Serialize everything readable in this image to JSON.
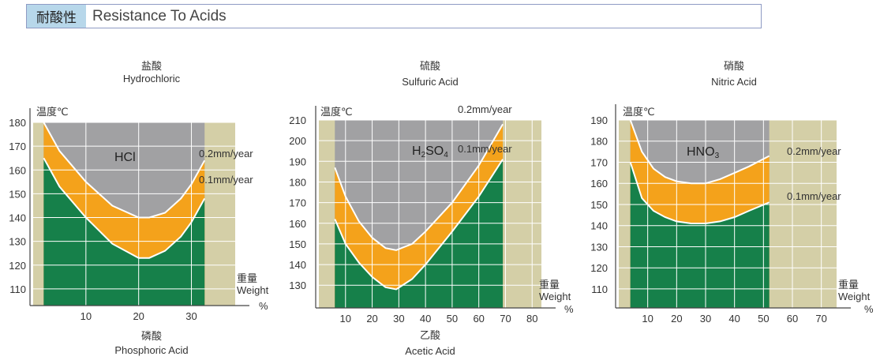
{
  "header": {
    "title_zh": "耐酸性",
    "title_en": "Resistance To Acids"
  },
  "colors": {
    "safe": "#16804a",
    "caution": "#f4a21b",
    "unsafe": "#a1a1a3",
    "out_of_range": "#d4cfa7",
    "grid": "#ffffff"
  },
  "chart_data": [
    {
      "type": "area",
      "top_label_zh": "盐酸",
      "top_label_en": "Hydrochloric",
      "bottom_label_zh": "磷酸",
      "bottom_label_en": "Phosphoric Acid",
      "region_label": "HCl",
      "region_label_sub": "",
      "ylabel": "温度℃",
      "xlabel_zh": "重量",
      "xlabel_en": "Weight",
      "xunit": "%",
      "xlim": [
        0,
        38
      ],
      "ylim": [
        103,
        180
      ],
      "yticks": [
        110,
        120,
        130,
        140,
        150,
        160,
        170,
        180
      ],
      "xticks": [
        10,
        20,
        30
      ],
      "xticks_labels": [
        "10",
        "20",
        "30"
      ],
      "data_range": [
        2,
        32.5
      ],
      "plot_bottom": 103,
      "series": [
        {
          "name": "0.2mm/year",
          "x": [
            2,
            5,
            10,
            15,
            20,
            22,
            25,
            28,
            30,
            32.5
          ],
          "y": [
            180,
            168,
            155,
            145,
            140,
            140,
            142,
            148,
            154,
            164
          ]
        },
        {
          "name": "0.1mm/year",
          "x": [
            2,
            5,
            10,
            15,
            20,
            22,
            25,
            28,
            30,
            32.5
          ],
          "y": [
            165,
            153,
            140,
            129,
            123,
            123,
            126,
            132,
            138,
            148
          ]
        }
      ]
    },
    {
      "type": "area",
      "top_label_zh": "硫酸",
      "top_label_en": "Sulfuric Acid",
      "bottom_label_zh": "乙酸",
      "bottom_label_en": "Acetic Acid",
      "region_label": "H",
      "region_label_sub": "2SO4",
      "ylabel": "温度℃",
      "xlabel_zh": "重量",
      "xlabel_en": "Weight",
      "xunit": "%",
      "xlim": [
        0,
        82
      ],
      "ylim": [
        119,
        210
      ],
      "yticks": [
        130,
        140,
        150,
        160,
        170,
        180,
        190,
        200,
        210
      ],
      "xticks": [
        10,
        20,
        30,
        40,
        50,
        60,
        70,
        80
      ],
      "xticks_labels": [
        "10",
        "20",
        "30",
        "40",
        "50",
        "60",
        "70",
        "80"
      ],
      "data_range": [
        6,
        69
      ],
      "plot_bottom": 119,
      "series": [
        {
          "name": "0.2mm/year",
          "x": [
            6,
            10,
            15,
            20,
            25,
            29,
            35,
            40,
            50,
            60,
            69
          ],
          "y": [
            187,
            173,
            161,
            153,
            148,
            147,
            150,
            156,
            170,
            188,
            208
          ]
        },
        {
          "name": "0.1mm/year",
          "x": [
            6,
            10,
            15,
            20,
            25,
            29,
            35,
            40,
            50,
            60,
            69
          ],
          "y": [
            162,
            150,
            141,
            134,
            129,
            128,
            133,
            140,
            156,
            173,
            191
          ]
        }
      ]
    },
    {
      "type": "area",
      "top_label_zh": "硝酸",
      "top_label_en": "Nitric Acid",
      "bottom_label_zh": "",
      "bottom_label_en": "",
      "region_label": "HNO",
      "region_label_sub": "3",
      "ylabel": "温度℃",
      "xlabel_zh": "重量",
      "xlabel_en": "Weight",
      "xunit": "%",
      "xlim": [
        0,
        75
      ],
      "ylim": [
        101,
        190
      ],
      "yticks": [
        110,
        120,
        130,
        140,
        150,
        160,
        170,
        180,
        190
      ],
      "xticks": [
        10,
        20,
        30,
        40,
        50,
        60,
        70
      ],
      "xticks_labels": [
        "10",
        "20",
        "30",
        "40",
        "50",
        "60",
        "70"
      ],
      "data_range": [
        4,
        52
      ],
      "plot_bottom": 101,
      "series": [
        {
          "name": "0.2mm/year",
          "x": [
            4,
            8,
            12,
            16,
            20,
            25,
            30,
            35,
            40,
            45,
            52
          ],
          "y": [
            190,
            175,
            167,
            163,
            161,
            160,
            160,
            162,
            165,
            168,
            173
          ]
        },
        {
          "name": "0.1mm/year",
          "x": [
            4,
            8,
            12,
            16,
            20,
            25,
            30,
            35,
            40,
            45,
            52
          ],
          "y": [
            170,
            153,
            147,
            144,
            142,
            141,
            141,
            142,
            144,
            147,
            151
          ]
        }
      ]
    }
  ]
}
